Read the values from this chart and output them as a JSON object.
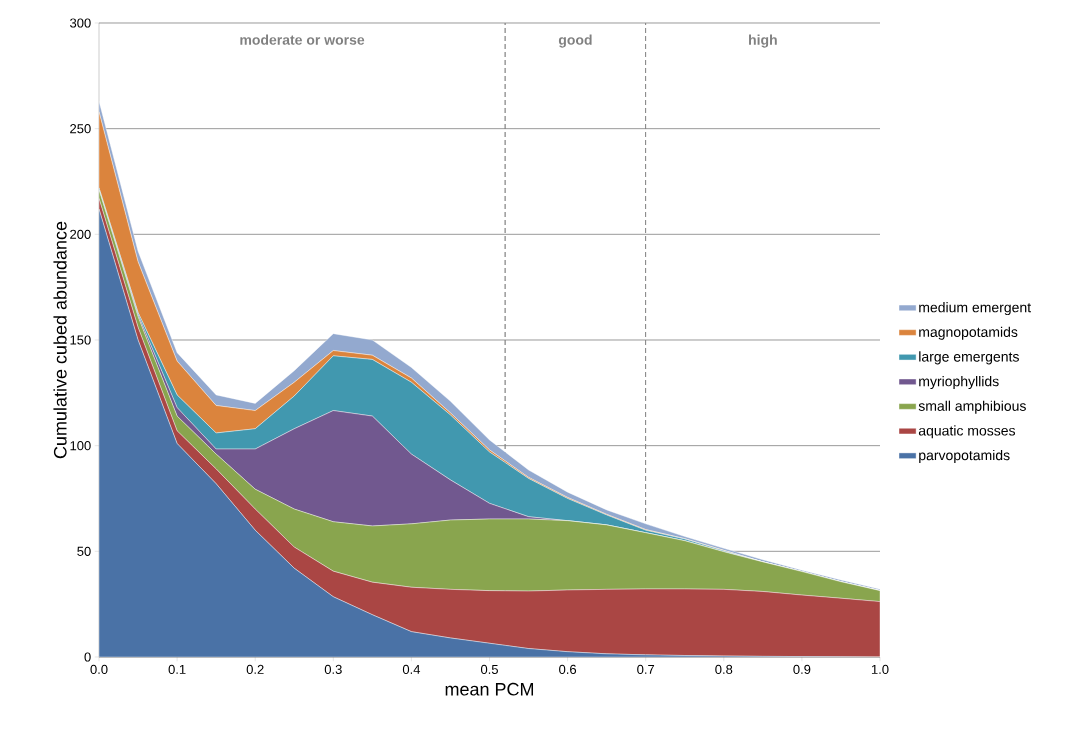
{
  "chart_data": {
    "type": "area",
    "stacked": true,
    "xlabel": "mean PCM",
    "ylabel": "Cumulative cubed abundance",
    "x": [
      0,
      0.05,
      0.1,
      0.15,
      0.2,
      0.25,
      0.3,
      0.35,
      0.4,
      0.45,
      0.5,
      0.55,
      0.6,
      0.65,
      0.7,
      0.75,
      0.8,
      0.85,
      0.9,
      0.95,
      1.0
    ],
    "series": [
      {
        "name": "parvopotamids",
        "color": "#4a72a6",
        "values": [
          212,
          150,
          101,
          82,
          60,
          42,
          28.5,
          20,
          12,
          9,
          6.5,
          4,
          2.5,
          1.5,
          1,
          0.7,
          0.5,
          0.3,
          0.2,
          0.1,
          0
        ]
      },
      {
        "name": "aquatic mosses",
        "color": "#aa4644",
        "values": [
          5,
          6,
          6,
          7,
          10,
          10,
          12.1,
          15.4,
          21,
          23,
          24.9,
          27.2,
          29.2,
          30.5,
          31.2,
          31.5,
          31.5,
          30.7,
          29.1,
          27.7,
          26.2
        ]
      },
      {
        "name": "small amphibious",
        "color": "#89a54e",
        "values": [
          4,
          5,
          7,
          7,
          9.4,
          18,
          23.4,
          26.6,
          30,
          32.8,
          33.9,
          34.1,
          32.8,
          30.5,
          26.6,
          22.8,
          17.8,
          14,
          11.1,
          7.8,
          5.2
        ]
      },
      {
        "name": "myriophyllids",
        "color": "#71588f",
        "values": [
          0,
          1,
          4,
          2.4,
          19,
          38,
          52.6,
          52,
          33,
          19,
          7.4,
          1.1,
          0,
          0,
          0,
          0,
          0,
          0,
          0,
          0,
          0
        ]
      },
      {
        "name": "large emergents",
        "color": "#4198af",
        "values": [
          1,
          1,
          6,
          7.6,
          9.6,
          15.5,
          25.9,
          26.8,
          34,
          30.7,
          24.3,
          18.1,
          10.5,
          4.7,
          1.2,
          0.8,
          0.5,
          0,
          0,
          0,
          0
        ]
      },
      {
        "name": "magnopotamids",
        "color": "#db843d",
        "values": [
          36,
          24,
          16,
          13,
          8.6,
          6.5,
          2.5,
          2,
          2,
          1,
          1,
          0.5,
          0.5,
          0.3,
          0.3,
          0.2,
          0.2,
          0,
          0,
          0,
          0
        ]
      },
      {
        "name": "medium emergent",
        "color": "#93a9cf",
        "values": [
          5,
          5,
          4,
          5,
          3.4,
          5.5,
          8,
          7.2,
          5,
          5.5,
          4.7,
          3.5,
          2.5,
          2.1,
          2.7,
          1,
          0.9,
          1,
          0.6,
          0.8,
          0.6
        ]
      }
    ],
    "xlim": [
      0,
      1
    ],
    "ylim": [
      0,
      300
    ],
    "xticks": [
      {
        "value": 0,
        "label": "0.0"
      },
      {
        "value": 0.1,
        "label": "0.1"
      },
      {
        "value": 0.2,
        "label": "0.2"
      },
      {
        "value": 0.3,
        "label": "0.3"
      },
      {
        "value": 0.4,
        "label": "0.4"
      },
      {
        "value": 0.5,
        "label": "0.5"
      },
      {
        "value": 0.6,
        "label": "0.6"
      },
      {
        "value": 0.7,
        "label": "0.7"
      },
      {
        "value": 0.8,
        "label": "0.8"
      },
      {
        "value": 0.9,
        "label": "0.9"
      },
      {
        "value": 1,
        "label": "1.0"
      }
    ],
    "yticks": [
      0,
      50,
      100,
      150,
      200,
      250,
      300
    ],
    "grid": "y",
    "legend": "right",
    "ref_lines": [
      {
        "axis": "x",
        "value": 0.52,
        "color": "#808080",
        "line_style": "dashed"
      },
      {
        "axis": "x",
        "value": 0.7,
        "color": "#808080",
        "line_style": "dashed"
      }
    ],
    "annotations": [
      "moderate or worse",
      "good",
      "high"
    ]
  }
}
